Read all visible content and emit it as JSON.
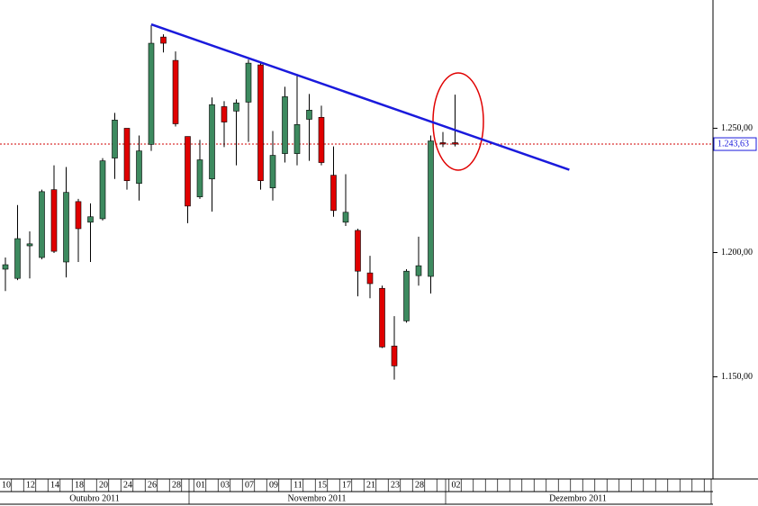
{
  "chart_data": {
    "type": "candlestick",
    "categories": [
      "10",
      null,
      "12",
      null,
      "14",
      null,
      "18",
      null,
      "20",
      null,
      "24",
      null,
      "26",
      null,
      "28",
      null,
      "01",
      null,
      "03",
      null,
      "07",
      null,
      "09",
      null,
      "11",
      null,
      "15",
      null,
      "17",
      null,
      "21",
      null,
      "23",
      null,
      "28",
      null,
      null,
      "02"
    ],
    "open": [
      1193.3,
      1189.6,
      1202.7,
      1198.0,
      1225.3,
      1196.2,
      1220.5,
      1212.2,
      1213.6,
      1238.0,
      1250.0,
      1227.8,
      1243.5,
      1286.7,
      1277.3,
      1246.7,
      1222.4,
      1229.6,
      1258.7,
      1256.9,
      1260.5,
      1275.5,
      1226.0,
      1239.8,
      1239.8,
      1253.6,
      1254.4,
      1231.1,
      1212.2,
      1208.9,
      1191.8,
      1185.6,
      1162.4,
      1172.5,
      1190.7,
      1190.4,
      1244.2,
      1244.2
    ],
    "high": [
      1198.0,
      1219.1,
      1208.5,
      1225.3,
      1235.1,
      1234.4,
      1221.6,
      1219.8,
      1238.0,
      1256.2,
      1250.0,
      1247.1,
      1291.5,
      1287.8,
      1280.9,
      1246.7,
      1245.3,
      1262.4,
      1260.9,
      1261.6,
      1277.6,
      1276.2,
      1248.9,
      1266.7,
      1271.8,
      1263.8,
      1259.1,
      1242.7,
      1231.5,
      1209.6,
      1198.7,
      1186.7,
      1174.4,
      1193.3,
      1206.4,
      1247.1,
      1248.5,
      1263.5
    ],
    "low": [
      1184.5,
      1188.9,
      1189.6,
      1197.3,
      1199.8,
      1190.0,
      1196.2,
      1196.2,
      1212.9,
      1229.6,
      1225.3,
      1220.9,
      1240.9,
      1280.5,
      1250.7,
      1211.8,
      1221.6,
      1216.5,
      1242.4,
      1235.1,
      1244.5,
      1225.3,
      1220.9,
      1236.2,
      1235.1,
      1236.9,
      1235.1,
      1214.4,
      1210.7,
      1182.4,
      1181.6,
      1161.6,
      1148.9,
      1171.8,
      1186.7,
      1183.5,
      1242.4,
      1242.7
    ],
    "close": [
      1195.1,
      1205.6,
      1203.5,
      1224.5,
      1200.5,
      1224.2,
      1209.6,
      1214.4,
      1236.9,
      1253.3,
      1228.9,
      1240.9,
      1284.2,
      1284.2,
      1251.8,
      1218.7,
      1237.3,
      1259.5,
      1252.5,
      1260.2,
      1276.2,
      1228.9,
      1239.1,
      1262.7,
      1251.5,
      1257.3,
      1236.2,
      1216.9,
      1216.2,
      1192.5,
      1187.5,
      1162.0,
      1154.4,
      1192.5,
      1194.7,
      1244.9,
      1243.8,
      1243.6
    ],
    "up_color": "#3d8a5f",
    "down_color": "#e00000",
    "ylim": [
      1108.9,
      1301.6
    ],
    "yticks": [
      {
        "value": 1150,
        "label": "1.150,00"
      },
      {
        "value": 1200,
        "label": "1.200,00"
      },
      {
        "value": 1250,
        "label": "1.250,00"
      }
    ],
    "current_price": {
      "value": 1243.63,
      "label": "1.243,63"
    },
    "trendline": {
      "x": [
        12,
        46.4
      ],
      "y": [
        1291.8,
        1233.3
      ],
      "color": "#1a1adc"
    },
    "month_labels": [
      "Outubro 2011",
      "Novembro 2011",
      "Dezembro 2011"
    ]
  }
}
